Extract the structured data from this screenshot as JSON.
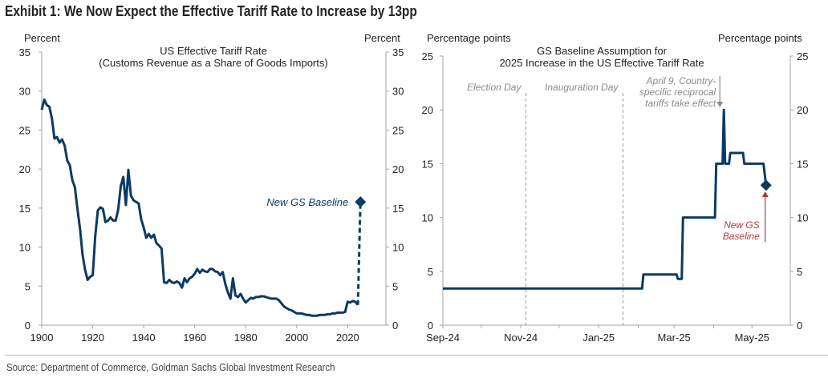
{
  "exhibit_title": "Exhibit 1: We Now Expect the Effective Tariff Rate to Increase by 13pp",
  "source": "Source: Department of Commerce, Goldman Sachs Global Investment Research",
  "colors": {
    "series": "#0b3a63",
    "annotation_gray": "#8a8a8a",
    "annotation_red": "#b03a3a",
    "axis": "#a6a6a6"
  },
  "chart_data": [
    {
      "type": "line",
      "title": "US Effective Tariff Rate",
      "subtitle": "(Customs Revenue as a Share of Goods Imports)",
      "ylabel_left": "Percent",
      "ylabel_right": "Percent",
      "xlim": [
        1900,
        2035
      ],
      "ylim": [
        0,
        35
      ],
      "xticks": [
        1900,
        1920,
        1940,
        1960,
        1980,
        2000,
        2020
      ],
      "xtick_labels": [
        "1900",
        "1920",
        "1940",
        "1960",
        "1980",
        "2000",
        "2020"
      ],
      "yticks": [
        0,
        5,
        10,
        15,
        20,
        25,
        30,
        35
      ],
      "ytick_labels": [
        "0",
        "5",
        "10",
        "15",
        "20",
        "25",
        "30",
        "35"
      ],
      "grid": false,
      "series": [
        {
          "name": "US Effective Tariff Rate",
          "x": [
            1900,
            1901,
            1902,
            1903,
            1904,
            1905,
            1906,
            1907,
            1908,
            1909,
            1910,
            1911,
            1912,
            1913,
            1914,
            1915,
            1916,
            1917,
            1918,
            1919,
            1920,
            1921,
            1922,
            1923,
            1924,
            1925,
            1926,
            1927,
            1928,
            1929,
            1930,
            1931,
            1932,
            1933,
            1934,
            1935,
            1936,
            1937,
            1938,
            1939,
            1940,
            1941,
            1942,
            1943,
            1944,
            1945,
            1946,
            1947,
            1948,
            1949,
            1950,
            1951,
            1952,
            1953,
            1954,
            1955,
            1956,
            1957,
            1958,
            1959,
            1960,
            1961,
            1962,
            1963,
            1964,
            1965,
            1966,
            1967,
            1968,
            1969,
            1970,
            1971,
            1972,
            1973,
            1974,
            1975,
            1976,
            1977,
            1978,
            1979,
            1980,
            1981,
            1982,
            1983,
            1984,
            1985,
            1986,
            1987,
            1988,
            1989,
            1990,
            1991,
            1992,
            1993,
            1994,
            1995,
            1996,
            1997,
            1998,
            1999,
            2000,
            2001,
            2002,
            2003,
            2004,
            2005,
            2006,
            2007,
            2008,
            2009,
            2010,
            2011,
            2012,
            2013,
            2014,
            2015,
            2016,
            2017,
            2018,
            2019,
            2020,
            2021,
            2022,
            2023,
            2024
          ],
          "values": [
            27.6,
            28.9,
            28.2,
            28.0,
            26.5,
            23.9,
            24.1,
            23.4,
            23.8,
            23.0,
            21.1,
            20.5,
            18.6,
            17.7,
            14.9,
            12.4,
            9.1,
            7.1,
            5.8,
            6.2,
            6.4,
            11.4,
            14.7,
            15.1,
            14.9,
            13.2,
            13.4,
            13.8,
            13.4,
            13.4,
            14.8,
            17.8,
            19.0,
            15.4,
            19.9,
            16.6,
            16.0,
            15.8,
            15.6,
            13.6,
            12.5,
            11.2,
            11.7,
            11.2,
            11.6,
            10.5,
            10.2,
            9.8,
            5.5,
            5.4,
            5.8,
            5.5,
            5.4,
            5.6,
            5.4,
            4.8,
            6.0,
            5.5,
            6.0,
            6.2,
            6.6,
            7.2,
            6.7,
            7.1,
            6.9,
            6.8,
            7.2,
            7.2,
            6.9,
            6.8,
            6.4,
            6.8,
            5.3,
            4.2,
            3.4,
            6.0,
            3.8,
            3.6,
            4.0,
            3.4,
            2.9,
            3.2,
            3.5,
            3.4,
            3.6,
            3.6,
            3.7,
            3.7,
            3.6,
            3.5,
            3.4,
            3.4,
            3.4,
            3.2,
            2.8,
            2.4,
            2.2,
            2.0,
            1.9,
            1.7,
            1.5,
            1.5,
            1.5,
            1.4,
            1.3,
            1.3,
            1.2,
            1.2,
            1.2,
            1.3,
            1.3,
            1.3,
            1.4,
            1.4,
            1.5,
            1.5,
            1.6,
            1.6,
            1.6,
            1.7,
            3.0,
            2.9,
            3.1,
            3.0,
            2.6
          ]
        },
        {
          "name": "New GS Baseline (projection)",
          "style": "dashed",
          "x": [
            2024,
            2025
          ],
          "values": [
            2.6,
            15.8
          ],
          "marker": "diamond"
        }
      ],
      "annotations": [
        {
          "text": "New GS Baseline",
          "x": 2025,
          "y": 15.8,
          "style": "italic"
        }
      ]
    },
    {
      "type": "line",
      "title": "GS Baseline Assumption for",
      "subtitle": "2025 Increase in the US Effective Tariff Rate",
      "ylabel_left": "Percentage points",
      "ylabel_right": "Percentage points",
      "xlim": [
        "2024-09-01",
        "2025-05-31"
      ],
      "ylim": [
        0,
        25
      ],
      "xtick_labels": [
        "Sep-24",
        "Nov-24",
        "Jan-25",
        "Mar-25",
        "May-25"
      ],
      "minor_ticks": [
        "Oct-24",
        "Dec-24",
        "Feb-25",
        "Apr-25"
      ],
      "yticks": [
        0,
        5,
        10,
        15,
        20,
        25
      ],
      "ytick_labels": [
        "0",
        "5",
        "10",
        "15",
        "20",
        "25"
      ],
      "grid": false,
      "series": [
        {
          "name": "GS Baseline Assumption",
          "x": [
            "2024-09-01",
            "2025-02-04",
            "2025-02-05",
            "2025-03-03",
            "2025-03-04",
            "2025-03-07",
            "2025-03-08",
            "2025-03-12",
            "2025-03-13",
            "2025-04-02",
            "2025-04-03",
            "2025-04-08",
            "2025-04-09",
            "2025-04-10",
            "2025-04-13",
            "2025-04-14",
            "2025-04-24",
            "2025-04-25",
            "2025-05-10",
            "2025-05-12"
          ],
          "values": [
            3.4,
            3.4,
            4.7,
            4.7,
            4.3,
            4.3,
            10.0,
            10.0,
            10.0,
            10.0,
            15.0,
            15.0,
            20.0,
            15.0,
            15.0,
            16.0,
            16.0,
            15.0,
            15.0,
            13.0
          ],
          "marker_last": "diamond"
        }
      ],
      "vlines": [
        {
          "label": "Election Day",
          "x": "2024-11-05"
        },
        {
          "label": "Inauguration Day",
          "x": "2025-01-20"
        }
      ],
      "annotations": [
        {
          "text": "April 9, Country-specific reciprocal tariffs take effect",
          "lines": [
            "April 9, Country-",
            "specific reciprocal",
            "tariffs take effect"
          ],
          "x": "2025-04-09",
          "arrow": "down",
          "color": "gray"
        },
        {
          "text": "New GS Baseline",
          "lines": [
            "New GS",
            "Baseline"
          ],
          "x": "2025-05-12",
          "y": 13.0,
          "arrow": "up",
          "color": "red"
        }
      ]
    }
  ]
}
